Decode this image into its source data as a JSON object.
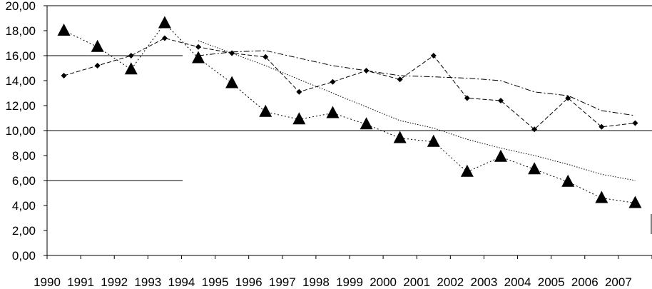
{
  "chart_data": {
    "type": "line",
    "categories": [
      "1990",
      "1991",
      "1992",
      "1993",
      "1994",
      "1995",
      "1996",
      "1997",
      "1998",
      "1999",
      "2000",
      "2001",
      "2002",
      "2003",
      "2004",
      "2005",
      "2006",
      "2007"
    ],
    "ylim": [
      0,
      20
    ],
    "yticks": [
      "0,00",
      "2,00",
      "4,00",
      "6,00",
      "8,00",
      "10,00",
      "12,00",
      "14,00",
      "16,00",
      "18,00",
      "20,00"
    ],
    "title": "",
    "xlabel": "",
    "ylabel": "",
    "legend": "none",
    "grid": "none",
    "series": [
      {
        "role": "triangle-markers",
        "marker": "triangle",
        "values": [
          18.0,
          16.7,
          14.9,
          18.6,
          15.8,
          13.8,
          11.5,
          10.9,
          11.4,
          10.5,
          9.4,
          9.1,
          6.7,
          7.9,
          6.9,
          5.9,
          4.6,
          4.2
        ]
      },
      {
        "role": "diamond-markers",
        "marker": "diamond",
        "values": [
          14.4,
          15.2,
          16.0,
          17.4,
          16.7,
          16.2,
          15.9,
          13.1,
          13.9,
          14.8,
          14.1,
          16.0,
          12.6,
          12.4,
          10.1,
          12.6,
          10.3,
          10.6
        ]
      },
      {
        "role": "trend-triangle",
        "line": "dotted",
        "values": [
          null,
          null,
          null,
          null,
          17.2,
          16.2,
          15.2,
          14.1,
          13.0,
          11.9,
          10.8,
          10.2,
          9.3,
          8.6,
          8.0,
          7.3,
          6.5,
          6.0
        ]
      },
      {
        "role": "trend-diamond",
        "line": "dashed",
        "values": [
          null,
          null,
          null,
          null,
          16.0,
          16.3,
          16.4,
          15.8,
          15.2,
          14.8,
          14.4,
          14.3,
          14.2,
          14.0,
          13.1,
          12.8,
          11.6,
          11.2
        ]
      }
    ],
    "reference_lines": [
      10,
      16,
      6
    ]
  }
}
